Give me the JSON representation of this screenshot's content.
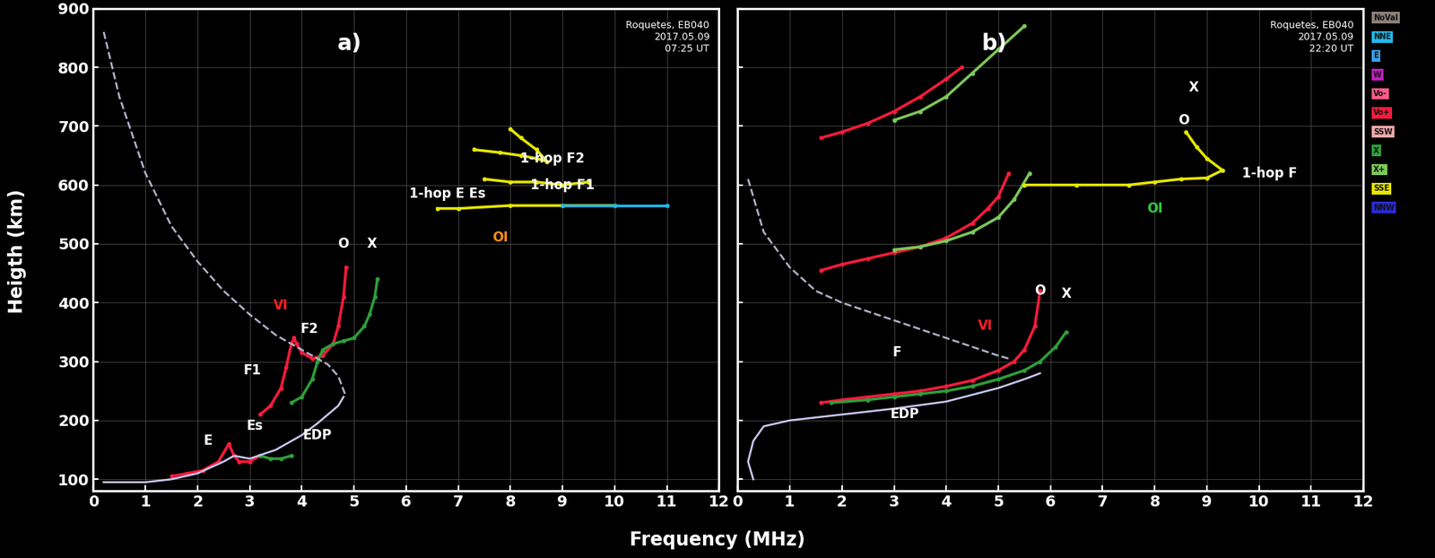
{
  "chart_data": [
    {
      "type": "line",
      "panel_label": "a)",
      "header": [
        "Roquetes, EB040",
        "2017.05.09",
        "07:25 UT"
      ],
      "xlim": [
        0,
        12
      ],
      "ylim": [
        80,
        900
      ],
      "xticks": [
        0,
        1,
        2,
        3,
        4,
        5,
        6,
        7,
        8,
        9,
        10,
        11,
        12
      ],
      "yticks": [
        100,
        200,
        300,
        400,
        500,
        600,
        700,
        800,
        900
      ],
      "grid": true,
      "series": [
        {
          "name": "Vo+",
          "color": "#ff1a3c",
          "marker": "o",
          "line_style": "solid",
          "x": [
            1.5,
            1.8,
            2.1,
            2.4,
            2.6,
            2.7,
            2.8,
            3.0,
            3.2
          ],
          "y": [
            105,
            110,
            115,
            130,
            160,
            140,
            130,
            130,
            140
          ]
        },
        {
          "name": "X",
          "color": "#2e9e3a",
          "marker": "o",
          "line_style": "solid",
          "x": [
            3.2,
            3.4,
            3.6,
            3.8
          ],
          "y": [
            140,
            135,
            135,
            140
          ]
        },
        {
          "name": "Vo+",
          "color": "#ff1a3c",
          "marker": "o",
          "line_style": "solid",
          "x": [
            3.2,
            3.4,
            3.6,
            3.7,
            3.8,
            3.85,
            3.9,
            4.0,
            4.2,
            4.4,
            4.6,
            4.7,
            4.8,
            4.85
          ],
          "y": [
            210,
            225,
            255,
            290,
            330,
            340,
            330,
            315,
            305,
            310,
            330,
            360,
            410,
            460
          ]
        },
        {
          "name": "X",
          "color": "#2e9e3a",
          "marker": "o",
          "line_style": "solid",
          "x": [
            3.8,
            4.0,
            4.2,
            4.3,
            4.4,
            4.6,
            4.8,
            5.0,
            5.2,
            5.3,
            5.4,
            5.45
          ],
          "y": [
            230,
            240,
            270,
            300,
            320,
            330,
            335,
            340,
            360,
            380,
            410,
            440
          ]
        },
        {
          "name": "SSE",
          "color": "#e6e600",
          "marker": "o",
          "line_style": "solid",
          "x": [
            6.6,
            7.0,
            8.0,
            9.0,
            10.0
          ],
          "y": [
            560,
            560,
            565,
            565,
            565
          ]
        },
        {
          "name": "NNE",
          "color": "#22b8e8",
          "marker": "o",
          "line_style": "solid",
          "x": [
            9.0,
            10.0,
            11.0
          ],
          "y": [
            565,
            565,
            565
          ]
        },
        {
          "name": "SSE",
          "color": "#e6e600",
          "marker": "o",
          "line_style": "solid",
          "x": [
            7.5,
            8.0,
            8.5,
            9.0,
            9.5
          ],
          "y": [
            610,
            605,
            605,
            600,
            605
          ]
        },
        {
          "name": "SSE",
          "color": "#e6e600",
          "marker": "o",
          "line_style": "solid",
          "x": [
            7.3,
            7.8,
            8.2,
            8.5,
            8.7,
            8.5,
            8.2,
            8.0
          ],
          "y": [
            660,
            655,
            650,
            645,
            640,
            660,
            680,
            695
          ]
        },
        {
          "name": "EDP",
          "color": "#c8c8f0",
          "marker": "none",
          "line_style": "solid",
          "x": [
            0.2,
            1.0,
            1.5,
            2.0,
            2.5,
            2.7,
            3.0,
            3.5,
            4.0,
            4.3,
            4.5,
            4.7,
            4.8
          ],
          "y": [
            95,
            95,
            100,
            110,
            130,
            140,
            135,
            150,
            175,
            195,
            210,
            225,
            240
          ]
        },
        {
          "color": "#b0b0c8",
          "marker": "none",
          "line_style": "dashed",
          "x": [
            0.2,
            0.5,
            1.0,
            1.5,
            2.0,
            2.5,
            3.0,
            3.5,
            4.0,
            4.5,
            4.7,
            4.85
          ],
          "y": [
            860,
            750,
            620,
            530,
            470,
            420,
            380,
            345,
            320,
            295,
            275,
            240
          ]
        }
      ],
      "annotations": [
        {
          "text": "E",
          "x": 2.2,
          "y": 165,
          "color": "#ffffff"
        },
        {
          "text": "Es",
          "x": 3.1,
          "y": 190,
          "color": "#ffffff"
        },
        {
          "text": "F1",
          "x": 3.05,
          "y": 285,
          "color": "#ffffff"
        },
        {
          "text": "F2",
          "x": 4.15,
          "y": 355,
          "color": "#ffffff"
        },
        {
          "text": "VI",
          "x": 3.6,
          "y": 395,
          "color": "#ff2020"
        },
        {
          "text": "O",
          "x": 4.8,
          "y": 500,
          "color": "#ffffff"
        },
        {
          "text": "X",
          "x": 5.35,
          "y": 500,
          "color": "#ffffff"
        },
        {
          "text": "EDP",
          "x": 4.3,
          "y": 175,
          "color": "#ffffff"
        },
        {
          "text": "1-hop F2",
          "x": 8.8,
          "y": 645,
          "color": "#ffffff"
        },
        {
          "text": "1-hop F1",
          "x": 9.0,
          "y": 600,
          "color": "#ffffff"
        },
        {
          "text": "1-hop E Es",
          "x": 6.8,
          "y": 585,
          "color": "#ffffff"
        },
        {
          "text": "OI",
          "x": 7.8,
          "y": 510,
          "color": "#ff8c1a"
        }
      ],
      "tick_labels": true
    },
    {
      "type": "line",
      "panel_label": "b)",
      "header": [
        "Roquetes, EB040",
        "2017.05.09",
        "22:20 UT"
      ],
      "xlim": [
        0,
        12
      ],
      "ylim": [
        80,
        900
      ],
      "xticks": [
        0,
        1,
        2,
        3,
        4,
        5,
        6,
        7,
        8,
        9,
        10,
        11,
        12
      ],
      "yticks": [
        100,
        200,
        300,
        400,
        500,
        600,
        700,
        800,
        900
      ],
      "grid": true,
      "series": [
        {
          "name": "Vo+",
          "color": "#ff1a3c",
          "marker": "o",
          "line_style": "solid",
          "x": [
            1.6,
            2.0,
            2.5,
            3.0,
            3.5,
            4.0,
            4.5,
            5.0,
            5.3,
            5.5,
            5.7,
            5.8
          ],
          "y": [
            230,
            235,
            240,
            245,
            250,
            258,
            268,
            285,
            300,
            320,
            360,
            420
          ]
        },
        {
          "name": "X",
          "color": "#2e9e3a",
          "marker": "o",
          "line_style": "solid",
          "x": [
            1.8,
            2.5,
            3.0,
            3.5,
            4.0,
            4.5,
            5.0,
            5.5,
            5.8,
            6.1,
            6.3
          ],
          "y": [
            230,
            235,
            240,
            245,
            250,
            258,
            270,
            285,
            300,
            325,
            350
          ]
        },
        {
          "name": "Vo+",
          "color": "#ff1a3c",
          "marker": "o",
          "line_style": "solid",
          "x": [
            1.6,
            2.0,
            2.5,
            3.0,
            3.5,
            4.0,
            4.5,
            4.8,
            5.0,
            5.2
          ],
          "y": [
            455,
            465,
            475,
            485,
            495,
            510,
            535,
            560,
            580,
            620
          ]
        },
        {
          "name": "X+",
          "color": "#7cc85a",
          "marker": "o",
          "line_style": "solid",
          "x": [
            3.0,
            3.5,
            4.0,
            4.5,
            5.0,
            5.3,
            5.6
          ],
          "y": [
            490,
            495,
            505,
            520,
            545,
            575,
            620
          ]
        },
        {
          "name": "Vo+",
          "color": "#ff1a3c",
          "marker": "o",
          "line_style": "solid",
          "x": [
            1.6,
            2.0,
            2.5,
            3.0,
            3.5,
            4.0,
            4.3
          ],
          "y": [
            680,
            690,
            705,
            725,
            750,
            780,
            800
          ]
        },
        {
          "name": "X+",
          "color": "#7cc85a",
          "marker": "o",
          "line_style": "solid",
          "x": [
            3.0,
            3.5,
            4.0,
            4.5,
            5.0,
            5.5
          ],
          "y": [
            710,
            725,
            750,
            790,
            830,
            870
          ]
        },
        {
          "name": "SSE",
          "color": "#e6e600",
          "marker": "o",
          "line_style": "solid",
          "x": [
            5.5,
            6.5,
            7.5,
            8.0,
            8.5,
            9.0,
            9.3,
            9.0,
            8.8,
            8.6
          ],
          "y": [
            600,
            600,
            600,
            605,
            610,
            612,
            625,
            645,
            665,
            690
          ]
        },
        {
          "name": "EDP",
          "color": "#c8c8f0",
          "marker": "none",
          "line_style": "solid",
          "x": [
            0.3,
            0.2,
            0.3,
            0.5,
            1.0,
            2.0,
            3.0,
            4.0,
            5.0,
            5.5,
            5.8
          ],
          "y": [
            100,
            130,
            165,
            190,
            200,
            210,
            220,
            232,
            255,
            270,
            280
          ]
        },
        {
          "color": "#b0b0c8",
          "marker": "none",
          "line_style": "dashed",
          "x": [
            0.2,
            0.5,
            1.0,
            1.5,
            2.0,
            2.5,
            3.0,
            3.5,
            4.0,
            4.5,
            5.0,
            5.2
          ],
          "y": [
            610,
            520,
            460,
            420,
            400,
            385,
            370,
            355,
            340,
            325,
            310,
            305
          ]
        }
      ],
      "annotations": [
        {
          "text": "F",
          "x": 3.05,
          "y": 315,
          "color": "#ffffff"
        },
        {
          "text": "VI",
          "x": 4.75,
          "y": 360,
          "color": "#ff2020"
        },
        {
          "text": "O",
          "x": 5.8,
          "y": 420,
          "color": "#ffffff"
        },
        {
          "text": "X",
          "x": 6.3,
          "y": 415,
          "color": "#ffffff"
        },
        {
          "text": "EDP",
          "x": 3.2,
          "y": 210,
          "color": "#ffffff"
        },
        {
          "text": "1-hop F",
          "x": 10.2,
          "y": 620,
          "color": "#ffffff"
        },
        {
          "text": "OI",
          "x": 8.0,
          "y": 560,
          "color": "#2ecc40"
        },
        {
          "text": "O",
          "x": 8.55,
          "y": 710,
          "color": "#ffffff"
        },
        {
          "text": "X",
          "x": 8.75,
          "y": 765,
          "color": "#ffffff"
        }
      ],
      "tick_labels": "x"
    }
  ],
  "x_label": "Frequency (MHz)",
  "y_label": "Heigth (km)",
  "legend_key": [
    {
      "label": "NoVal",
      "color": "#8c7f7a"
    },
    {
      "label": "NNE",
      "color": "#22b8e8"
    },
    {
      "label": "E",
      "color": "#3a9ee8"
    },
    {
      "label": "W",
      "color": "#c21fc2"
    },
    {
      "label": "Vo-",
      "color": "#ff5c8a"
    },
    {
      "label": "Vo+",
      "color": "#ff1a3c"
    },
    {
      "label": "SSW",
      "color": "#f0a8a8"
    },
    {
      "label": "X",
      "color": "#2e9e3a"
    },
    {
      "label": "X+",
      "color": "#7cc85a"
    },
    {
      "label": "SSE",
      "color": "#e6e600"
    },
    {
      "label": "NNW",
      "color": "#2a2ad0"
    }
  ]
}
